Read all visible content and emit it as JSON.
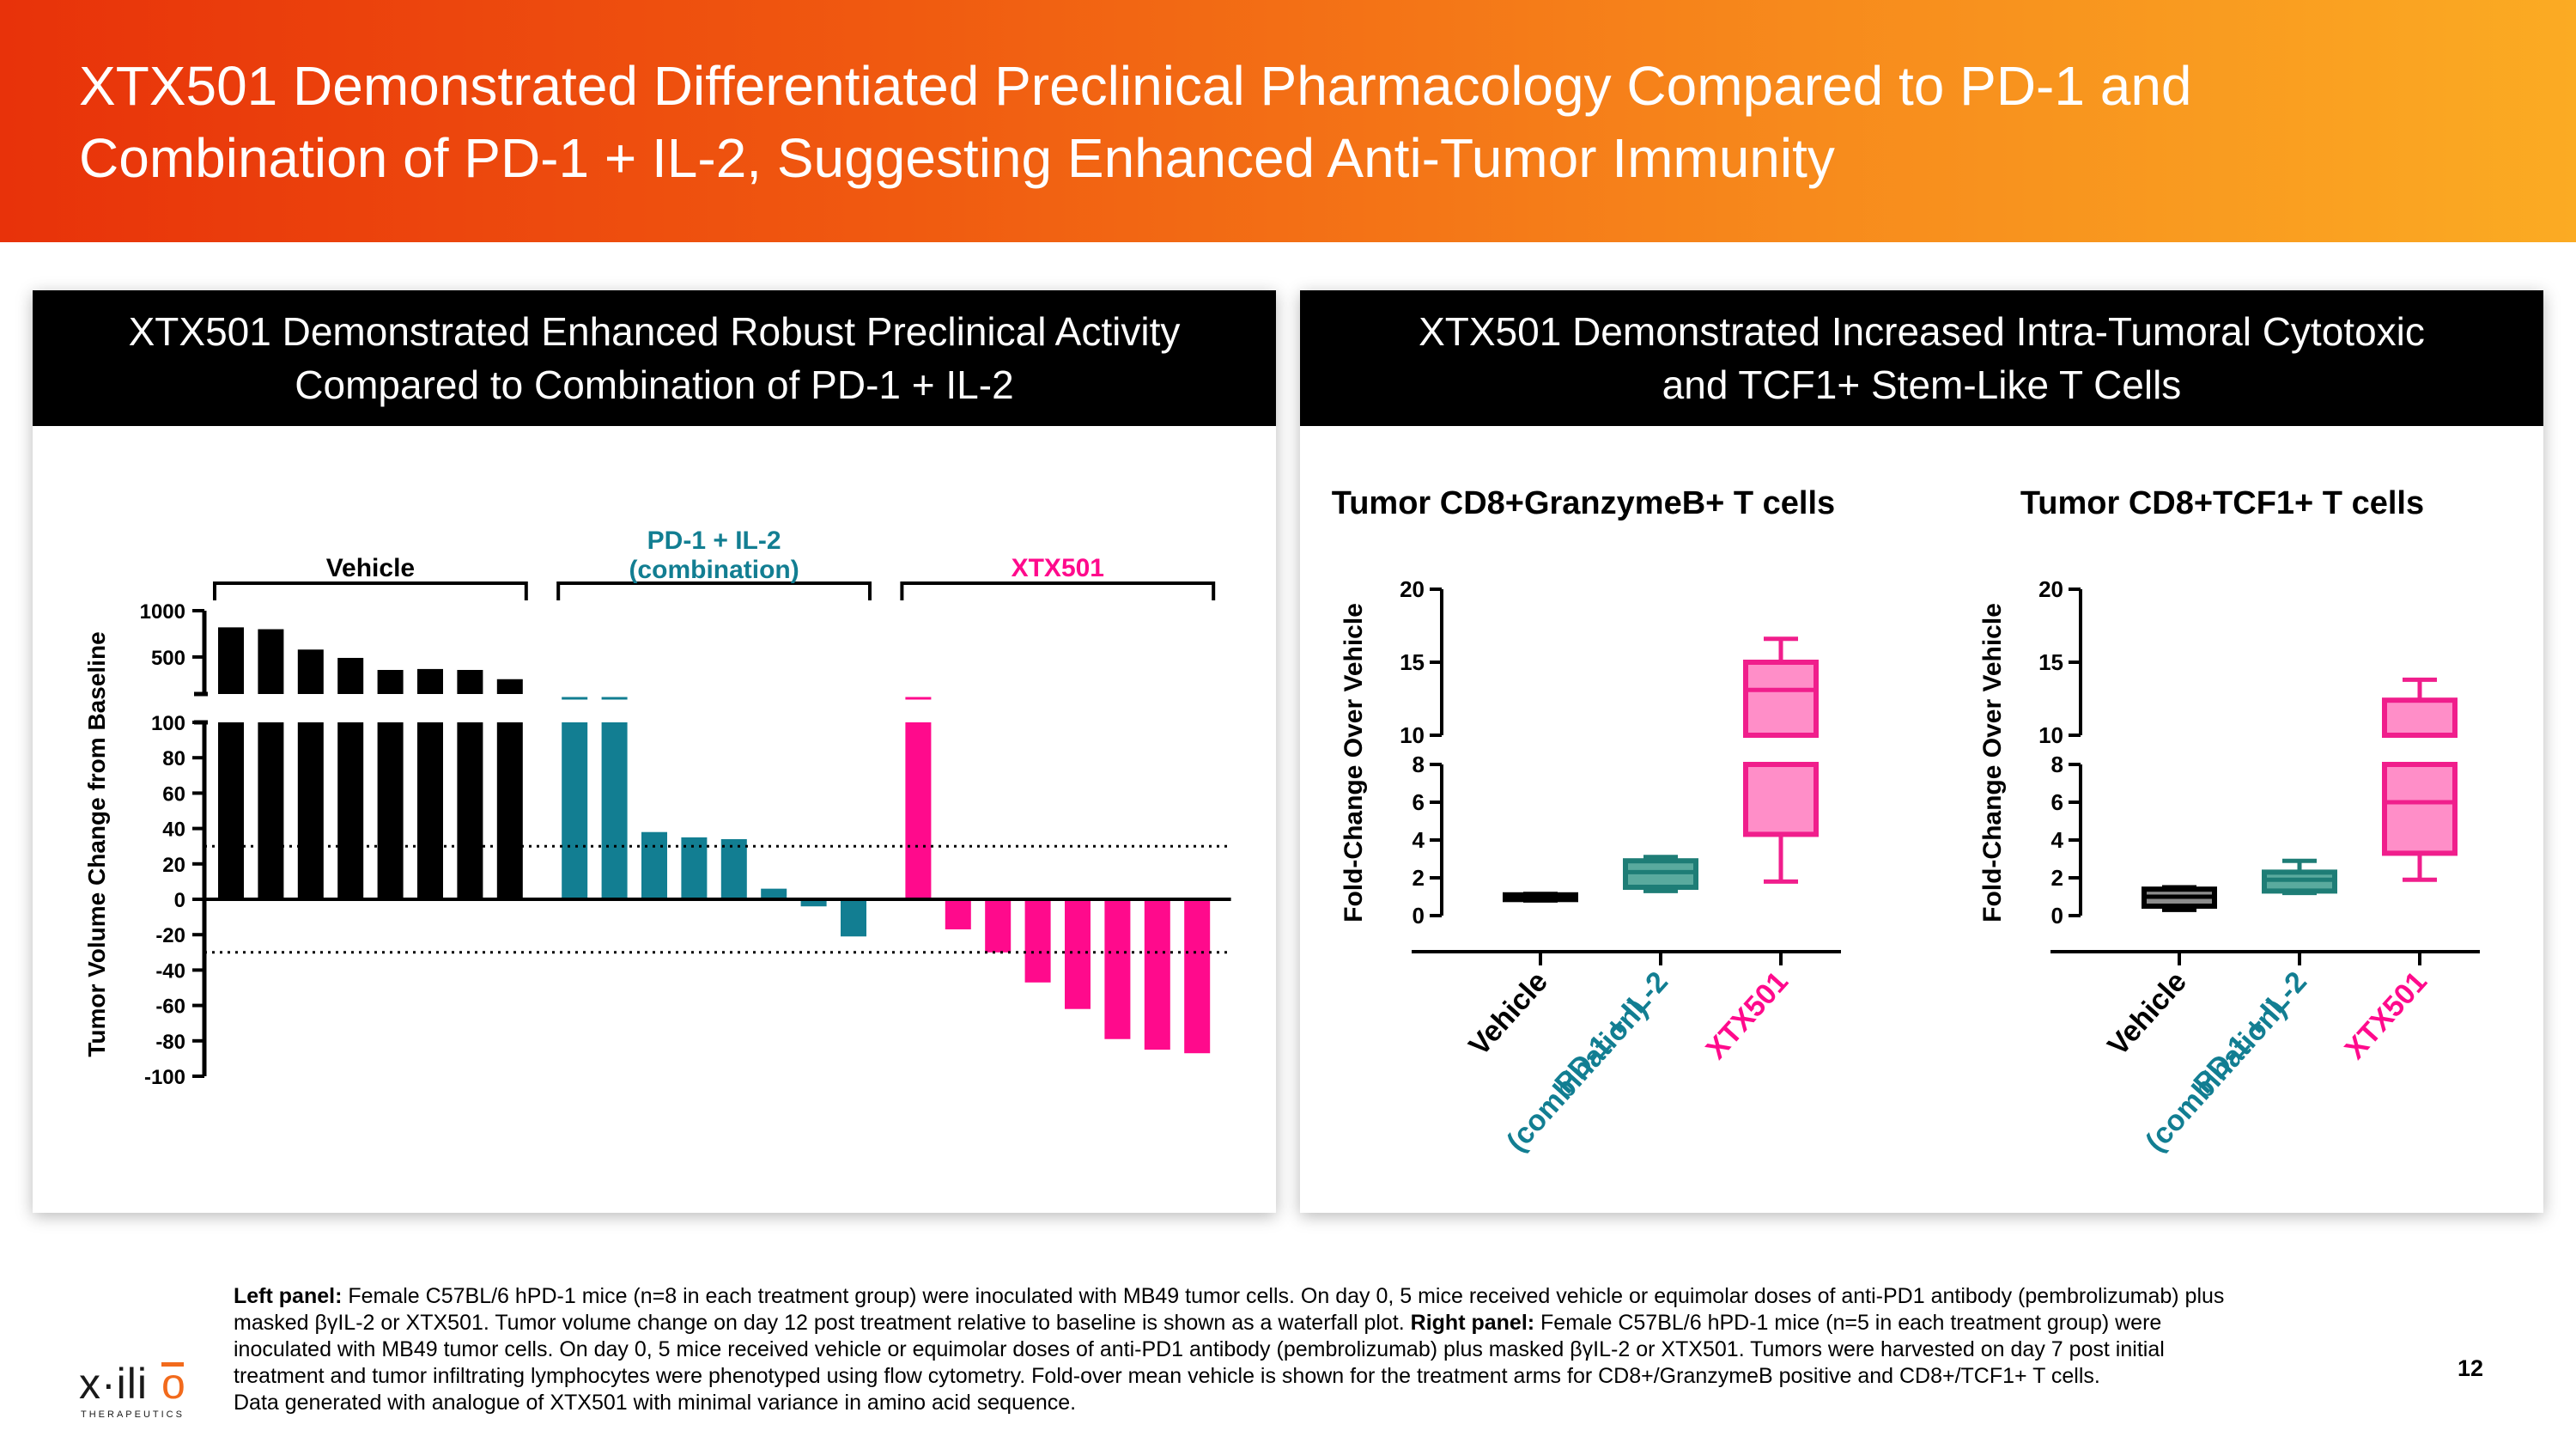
{
  "slide": {
    "title_line1": "XTX501 Demonstrated Differentiated Preclinical Pharmacology Compared to PD-1 and",
    "title_line2": "Combination of PD-1 + IL-2, Suggesting Enhanced Anti-Tumor Immunity",
    "page_number": "12"
  },
  "left_panel": {
    "header_line1": "XTX501 Demonstrated Enhanced Robust Preclinical Activity",
    "header_line2": "Compared to Combination of PD-1 + IL-2"
  },
  "right_panel": {
    "header_line1": "XTX501 Demonstrated Increased Intra-Tumoral Cytotoxic",
    "header_line2": "and TCF1+ Stem-Like T Cells"
  },
  "footnote": {
    "left_label": "Left panel:",
    "left_text": " Female C57BL/6 hPD-1 mice (n=8 in each treatment group) were inoculated with MB49 tumor cells. On day 0, 5 mice received vehicle or equimolar doses of anti-PD1 antibody (pembrolizumab) plus masked   βγIL-2 or XTX501. Tumor volume change on day 12 post treatment relative to baseline is shown as a waterfall plot. ",
    "right_label": "Right panel:",
    "right_text": " Female C57BL/6 hPD-1 mice (n=5 in each treatment group) were inoculated with MB49 tumor cells. On day 0, 5 mice received vehicle or equimolar doses of anti-PD1 antibody (pembrolizumab) plus masked βγIL-2 or XTX501. Tumors were harvested on day 7 post initial treatment and tumor infiltrating lymphocytes were phenotyped using flow cytometry. Fold-over mean vehicle is shown for the treatment arms for CD8+/GranzymeB positive and CD8+/TCF1+ T cells.",
    "line_last": "Data generated with analogue of XTX501 with minimal variance in amino acid sequence."
  },
  "logo": {
    "wordmark": "x·ilio",
    "tagline": "THERAPEUTICS"
  },
  "colors": {
    "vehicle": "#000000",
    "combination": "#127e92",
    "xtx501": "#ff0a8c",
    "box_teal_fill": "#5aaa9e",
    "box_teal_stroke": "#1e7d76",
    "box_pink_fill": "#ff8ec8",
    "box_pink_stroke": "#f01e8c"
  },
  "chart_data": [
    {
      "type": "bar",
      "subtype": "waterfall",
      "ylabel": "Tumor Volume Change from Baseline",
      "y_axis_segments": [
        {
          "range": [
            -100,
            100
          ],
          "ticks": [
            -100,
            -80,
            -60,
            -40,
            -20,
            0,
            20,
            40,
            60,
            80,
            100
          ]
        },
        {
          "range": [
            100,
            1000
          ],
          "ticks": [
            500,
            1000
          ]
        }
      ],
      "reference_lines": [
        30,
        -30
      ],
      "groups": [
        {
          "name": "Vehicle",
          "color": "#000000",
          "values": [
            820,
            800,
            580,
            490,
            360,
            370,
            360,
            260
          ]
        },
        {
          "name": "PD-1 + IL-2",
          "name_line2": "(combination)",
          "color": "#127e92",
          "values": [
            100,
            100,
            38,
            35,
            34,
            6,
            -4,
            -21
          ]
        },
        {
          "name": "XTX501",
          "color": "#ff0a8c",
          "values": [
            100,
            -17,
            -30,
            -47,
            -62,
            -79,
            -85,
            -87
          ]
        }
      ],
      "capped_bar_markers": [
        {
          "group": "PD-1 + IL-2",
          "bar": 1
        },
        {
          "group": "PD-1 + IL-2",
          "bar": 2
        },
        {
          "group": "XTX501",
          "bar": 1
        }
      ]
    },
    {
      "type": "box",
      "title": "Tumor CD8+GranzymeB+ T cells",
      "ylabel": "Fold-Change Over Vehicle",
      "y_axis_segments": [
        {
          "range": [
            0,
            8
          ],
          "ticks": [
            0,
            2,
            4,
            6,
            8
          ]
        },
        {
          "range": [
            10,
            20
          ],
          "ticks": [
            10,
            15,
            20
          ]
        }
      ],
      "categories": [
        "Vehicle",
        "PD-1 + IL-2 (combination)",
        "XTX501"
      ],
      "category_label_lines": [
        [
          "Vehicle"
        ],
        [
          "PD-1 + IL-2",
          "(combination)"
        ],
        [
          "XTX501"
        ]
      ],
      "boxes": [
        {
          "min": 0.8,
          "q1": 0.85,
          "median": 1.0,
          "q3": 1.1,
          "max": 1.15
        },
        {
          "min": 1.3,
          "q1": 1.5,
          "median": 2.3,
          "q3": 2.9,
          "max": 3.1
        },
        {
          "min": 1.8,
          "q1": 4.3,
          "median": 13.1,
          "q3": 15.0,
          "max": 16.6
        }
      ]
    },
    {
      "type": "box",
      "title": "Tumor CD8+TCF1+ T cells",
      "ylabel": "Fold-Change Over Vehicle",
      "y_axis_segments": [
        {
          "range": [
            0,
            8
          ],
          "ticks": [
            0,
            2,
            4,
            6,
            8
          ]
        },
        {
          "range": [
            10,
            20
          ],
          "ticks": [
            10,
            15,
            20
          ]
        }
      ],
      "categories": [
        "Vehicle",
        "PD-1 + IL-2 (combination)",
        "XTX501"
      ],
      "category_label_lines": [
        [
          "Vehicle"
        ],
        [
          "PD-1 + IL-2",
          "(combination)"
        ],
        [
          "XTX501"
        ]
      ],
      "boxes": [
        {
          "min": 0.3,
          "q1": 0.5,
          "median": 1.0,
          "q3": 1.4,
          "max": 1.5
        },
        {
          "min": 1.2,
          "q1": 1.3,
          "median": 1.9,
          "q3": 2.3,
          "max": 2.9
        },
        {
          "min": 1.9,
          "q1": 3.3,
          "median": 6.0,
          "q3": 12.4,
          "max": 13.8
        }
      ]
    }
  ]
}
